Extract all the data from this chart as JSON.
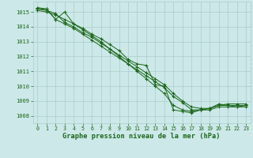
{
  "background_color": "#cce8e8",
  "grid_color": "#aacccc",
  "line_color": "#1a6618",
  "xlabel": "Graphe pression niveau de la mer (hPa)",
  "xlim": [
    -0.5,
    23.5
  ],
  "ylim": [
    1007.5,
    1015.7
  ],
  "yticks": [
    1008,
    1009,
    1010,
    1011,
    1012,
    1013,
    1014,
    1015
  ],
  "xticks": [
    0,
    1,
    2,
    3,
    4,
    5,
    6,
    7,
    8,
    9,
    10,
    11,
    12,
    13,
    14,
    15,
    16,
    17,
    18,
    19,
    20,
    21,
    22,
    23
  ],
  "series": [
    [
      1015.3,
      1015.2,
      1014.5,
      1015.0,
      1014.2,
      1013.9,
      1013.5,
      1013.2,
      1012.8,
      1012.4,
      1011.8,
      1011.5,
      1011.4,
      1010.1,
      1010.0,
      1008.4,
      1008.3,
      1008.2,
      1008.4,
      1008.5,
      1008.8,
      1008.7,
      1008.6,
      1008.7
    ],
    [
      1015.2,
      1015.2,
      1014.5,
      1014.2,
      1013.9,
      1013.5,
      1013.1,
      1012.7,
      1012.3,
      1011.9,
      1011.5,
      1011.1,
      1010.7,
      1010.3,
      1009.9,
      1009.3,
      1008.9,
      1008.4,
      1008.4,
      1008.5,
      1008.7,
      1008.7,
      1008.7,
      1008.7
    ],
    [
      1015.2,
      1015.1,
      1014.9,
      1014.3,
      1014.0,
      1013.6,
      1013.3,
      1012.9,
      1012.5,
      1012.1,
      1011.7,
      1011.3,
      1010.9,
      1010.5,
      1010.1,
      1009.5,
      1009.0,
      1008.6,
      1008.5,
      1008.5,
      1008.7,
      1008.8,
      1008.8,
      1008.8
    ],
    [
      1015.1,
      1015.0,
      1014.8,
      1014.5,
      1014.2,
      1013.8,
      1013.4,
      1013.0,
      1012.5,
      1012.0,
      1011.5,
      1011.0,
      1010.5,
      1010.0,
      1009.5,
      1008.7,
      1008.4,
      1008.3,
      1008.4,
      1008.4,
      1008.6,
      1008.6,
      1008.6,
      1008.6
    ]
  ]
}
